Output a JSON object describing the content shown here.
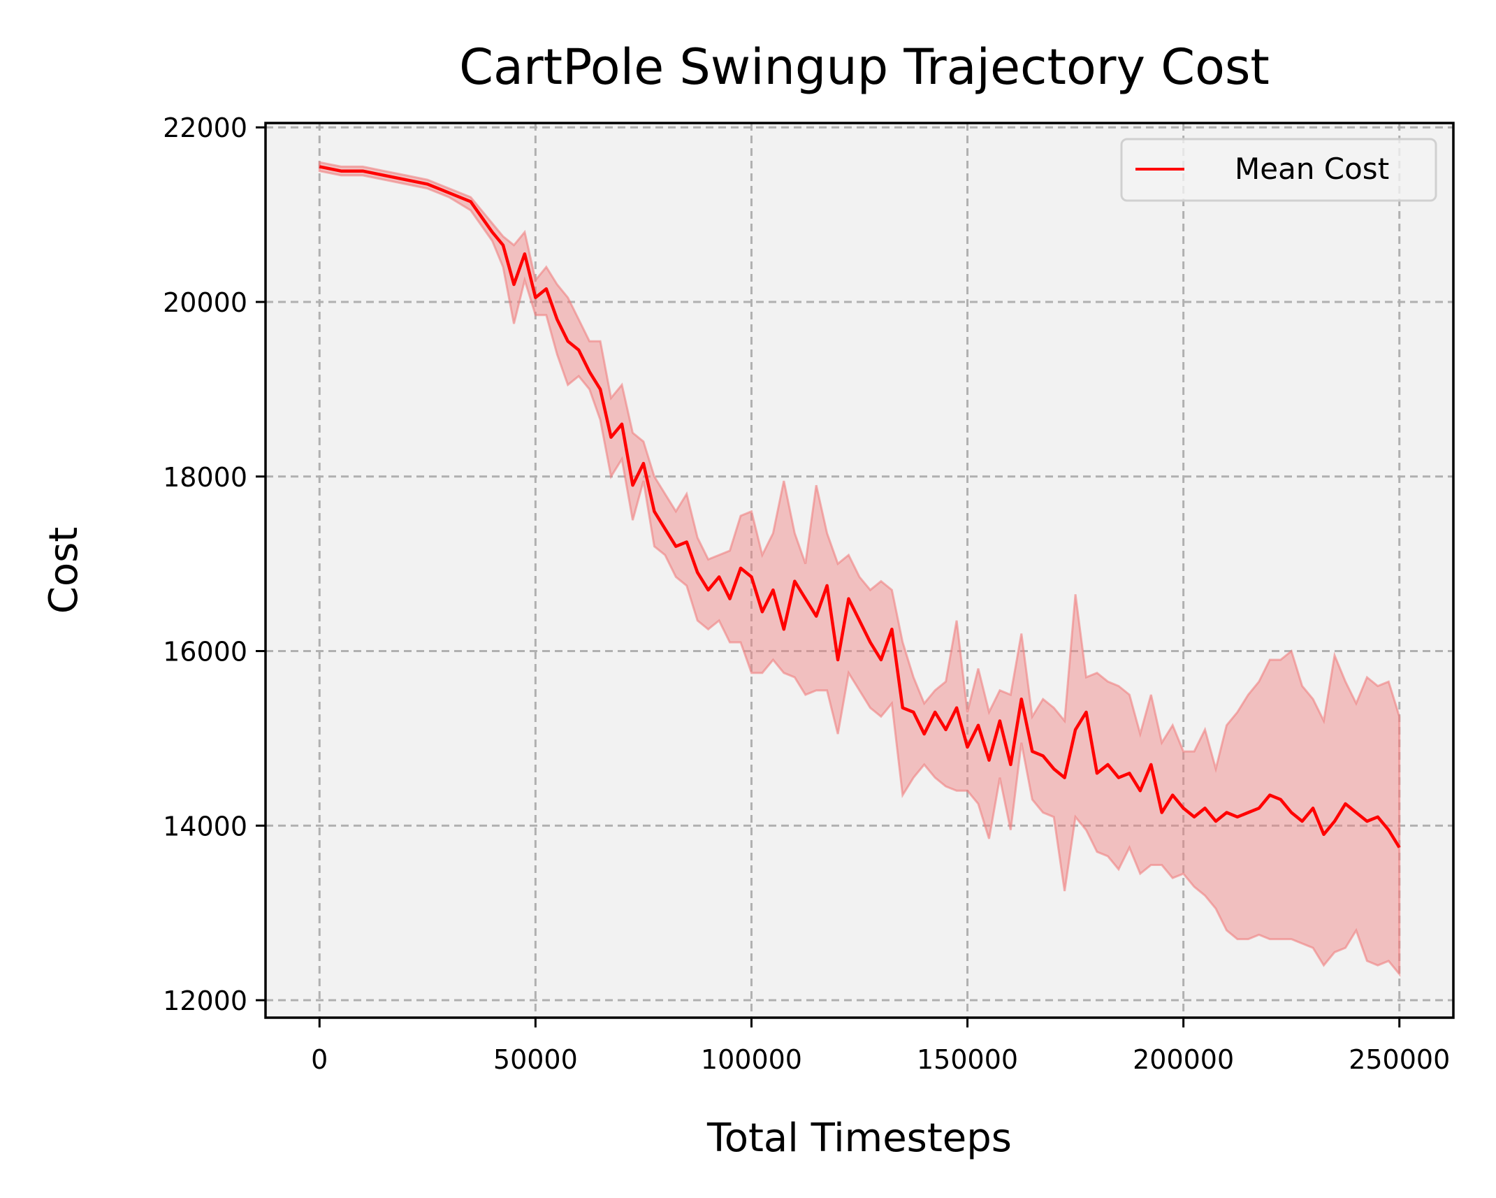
{
  "chart_data": {
    "type": "line",
    "title": "CartPole Swingup Trajectory Cost",
    "xlabel": "Total Timesteps",
    "ylabel": "Cost",
    "xlim": [
      -12500,
      262500
    ],
    "ylim": [
      11800,
      22050
    ],
    "xticks": [
      0,
      50000,
      100000,
      150000,
      200000,
      250000
    ],
    "xtick_labels": [
      "0",
      "50000",
      "100000",
      "150000",
      "200000",
      "250000"
    ],
    "yticks": [
      12000,
      14000,
      16000,
      18000,
      20000,
      22000
    ],
    "ytick_labels": [
      "12000",
      "14000",
      "16000",
      "18000",
      "20000",
      "22000"
    ],
    "grid": true,
    "legend_position": "top-right",
    "colors": {
      "line": "#ff0000",
      "band": "#f08080",
      "plot_bg": "#f2f2f2",
      "grid": "#b0b0b0"
    },
    "series": [
      {
        "name": "Mean Cost",
        "x": [
          0,
          5000,
          10000,
          15000,
          20000,
          25000,
          30000,
          35000,
          40000,
          42500,
          45000,
          47500,
          50000,
          52500,
          55000,
          57500,
          60000,
          62500,
          65000,
          67500,
          70000,
          72500,
          75000,
          77500,
          80000,
          82500,
          85000,
          87500,
          90000,
          92500,
          95000,
          97500,
          100000,
          102500,
          105000,
          107500,
          110000,
          112500,
          115000,
          117500,
          120000,
          122500,
          125000,
          127500,
          130000,
          132500,
          135000,
          137500,
          140000,
          142500,
          145000,
          147500,
          150000,
          152500,
          155000,
          157500,
          160000,
          162500,
          165000,
          167500,
          170000,
          172500,
          175000,
          177500,
          180000,
          182500,
          185000,
          187500,
          190000,
          192500,
          195000,
          197500,
          200000,
          202500,
          205000,
          207500,
          210000,
          212500,
          215000,
          217500,
          220000,
          222500,
          225000,
          227500,
          230000,
          232500,
          235000,
          237500,
          240000,
          242500,
          245000,
          247500,
          250000
        ],
        "values": [
          21550,
          21500,
          21500,
          21450,
          21400,
          21350,
          21250,
          21150,
          20800,
          20650,
          20200,
          20550,
          20050,
          20150,
          19800,
          19550,
          19450,
          19200,
          19000,
          18450,
          18600,
          17900,
          18150,
          17600,
          17400,
          17200,
          17250,
          16900,
          16700,
          16850,
          16600,
          16950,
          16850,
          16450,
          16700,
          16250,
          16800,
          16600,
          16400,
          16750,
          15900,
          16600,
          16350,
          16100,
          15900,
          16250,
          15350,
          15300,
          15050,
          15300,
          15100,
          15350,
          14900,
          15150,
          14750,
          15200,
          14700,
          15450,
          14850,
          14800,
          14650,
          14550,
          15100,
          15300,
          14600,
          14700,
          14550,
          14600,
          14400,
          14700,
          14150,
          14350,
          14200,
          14100,
          14200,
          14050,
          14150,
          14100,
          14150,
          14200,
          14350,
          14300,
          14150,
          14050,
          14200,
          13900,
          14050,
          14250,
          14150,
          14050,
          14100,
          13950,
          13750
        ],
        "upper": [
          21600,
          21550,
          21550,
          21500,
          21450,
          21400,
          21300,
          21200,
          20900,
          20750,
          20650,
          20800,
          20250,
          20400,
          20200,
          20050,
          19800,
          19550,
          19550,
          18900,
          19050,
          18500,
          18400,
          18000,
          17800,
          17600,
          17800,
          17300,
          17050,
          17100,
          17150,
          17550,
          17600,
          17100,
          17350,
          17950,
          17350,
          17000,
          17900,
          17350,
          17000,
          17100,
          16850,
          16700,
          16800,
          16700,
          16100,
          15700,
          15400,
          15550,
          15650,
          16350,
          15300,
          15800,
          15300,
          15550,
          15500,
          16200,
          15250,
          15450,
          15350,
          15200,
          16650,
          15700,
          15750,
          15650,
          15600,
          15500,
          15050,
          15500,
          14950,
          15150,
          14850,
          14850,
          15100,
          14650,
          15150,
          15300,
          15500,
          15650,
          15900,
          15900,
          16000,
          15600,
          15450,
          15200,
          15950,
          15650,
          15400,
          15700,
          15600,
          15650,
          15250
        ],
        "lower": [
          21500,
          21450,
          21450,
          21400,
          21350,
          21300,
          21200,
          21050,
          20700,
          20400,
          19750,
          20250,
          19850,
          19850,
          19400,
          19050,
          19150,
          19000,
          18650,
          18000,
          18200,
          17500,
          17950,
          17200,
          17100,
          16850,
          16750,
          16350,
          16250,
          16350,
          16100,
          16100,
          15750,
          15750,
          15900,
          15750,
          15700,
          15500,
          15550,
          15550,
          15050,
          15750,
          15550,
          15350,
          15250,
          15400,
          14350,
          14550,
          14700,
          14550,
          14450,
          14400,
          14400,
          14250,
          13850,
          14550,
          13950,
          14950,
          14300,
          14150,
          14100,
          13250,
          14100,
          13950,
          13700,
          13650,
          13500,
          13750,
          13450,
          13550,
          13550,
          13400,
          13450,
          13300,
          13200,
          13050,
          12800,
          12700,
          12700,
          12750,
          12700,
          12700,
          12700,
          12650,
          12600,
          12400,
          12550,
          12600,
          12800,
          12450,
          12400,
          12450,
          12300
        ]
      }
    ]
  }
}
